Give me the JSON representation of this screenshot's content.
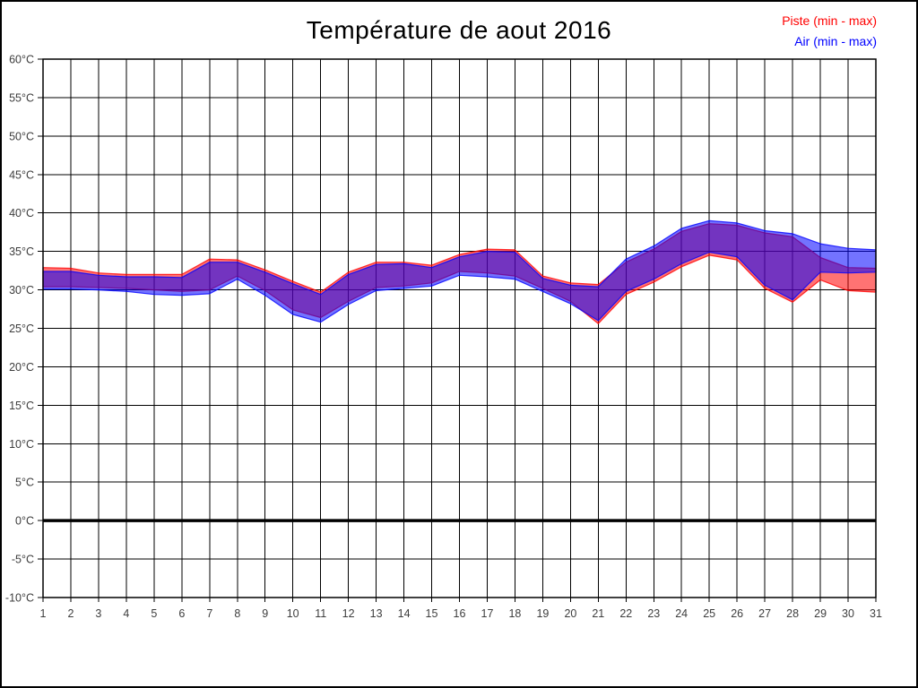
{
  "title_bar": {
    "window_title": "Température de aout 2016"
  },
  "legend": {
    "piste_label": "Piste (min - max)",
    "air_label": "Air (min - max)",
    "piste_color": "#ff0000",
    "air_color": "#0000ff"
  },
  "chart_data": {
    "type": "area",
    "subtype": "min-max-band",
    "title": "Température de aout 2016",
    "xlabel": "",
    "ylabel": "",
    "grid": true,
    "legend_position": "top-right",
    "ylim": [
      -10,
      60
    ],
    "ytick_step": 5,
    "ytick_suffix": "°C",
    "zero_line_value": 0,
    "x": [
      1,
      2,
      3,
      4,
      5,
      6,
      7,
      8,
      9,
      10,
      11,
      12,
      13,
      14,
      15,
      16,
      17,
      18,
      19,
      20,
      21,
      22,
      23,
      24,
      25,
      26,
      27,
      28,
      29,
      30,
      31
    ],
    "series": [
      {
        "name": "Piste (min - max)",
        "color": "#ff0000",
        "min": [
          30.4,
          30.4,
          30.3,
          30.2,
          30.0,
          29.8,
          30.0,
          31.8,
          29.9,
          27.4,
          26.4,
          28.5,
          30.3,
          30.5,
          30.9,
          32.4,
          32.2,
          31.8,
          30.2,
          28.5,
          25.6,
          29.4,
          31.0,
          33.0,
          34.5,
          33.9,
          30.2,
          28.4,
          31.3,
          29.9,
          29.7
        ],
        "max": [
          32.9,
          32.8,
          32.2,
          32.0,
          32.0,
          32.0,
          34.0,
          33.9,
          32.6,
          31.1,
          29.7,
          32.3,
          33.6,
          33.6,
          33.2,
          34.6,
          35.3,
          35.2,
          31.8,
          30.9,
          30.7,
          33.6,
          35.3,
          37.6,
          38.6,
          38.4,
          37.4,
          36.9,
          34.2,
          32.9,
          32.8
        ]
      },
      {
        "name": "Air (min - max)",
        "color": "#0000ff",
        "min": [
          30.1,
          30.1,
          30.0,
          29.8,
          29.4,
          29.3,
          29.5,
          31.4,
          29.3,
          26.8,
          25.8,
          28.1,
          29.9,
          30.2,
          30.5,
          31.9,
          31.7,
          31.4,
          29.8,
          28.2,
          26.0,
          29.8,
          31.4,
          33.4,
          34.9,
          34.3,
          30.6,
          28.7,
          32.3,
          32.2,
          32.3
        ],
        "max": [
          32.4,
          32.4,
          31.9,
          31.7,
          31.7,
          31.6,
          33.6,
          33.6,
          32.3,
          30.8,
          29.4,
          32.0,
          33.3,
          33.4,
          32.9,
          34.3,
          35.0,
          34.9,
          31.5,
          30.6,
          30.4,
          34.0,
          35.7,
          38.0,
          39.0,
          38.7,
          37.7,
          37.3,
          36.0,
          35.4,
          35.2
        ]
      }
    ]
  }
}
